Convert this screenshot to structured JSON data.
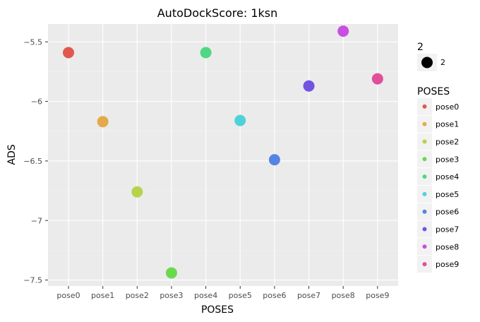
{
  "chart_data": {
    "type": "scatter",
    "title": "AutoDockScore: 1ksn",
    "xlabel": "POSES",
    "ylabel": "ADS",
    "categories": [
      "pose0",
      "pose1",
      "pose2",
      "pose3",
      "pose4",
      "pose5",
      "pose6",
      "pose7",
      "pose8",
      "pose9"
    ],
    "values": [
      -5.59,
      -6.17,
      -6.76,
      -7.44,
      -5.59,
      -6.16,
      -6.49,
      -5.87,
      -5.41,
      -5.81
    ],
    "colors": [
      "#e0584f",
      "#e3aa4c",
      "#b6d34b",
      "#6ad94e",
      "#4ed884",
      "#4ed2d8",
      "#5585e2",
      "#7353e2",
      "#c94fe0",
      "#e04f9a"
    ],
    "ylim": [
      -7.55,
      -5.35
    ],
    "yticks": [
      -5.5,
      -6,
      -6.5,
      -7,
      -7.5
    ],
    "ytick_labels": [
      "−5.5",
      "−6",
      "−6.5",
      "−7",
      "−7.5"
    ],
    "grid": true,
    "legend_position": "right",
    "size_legend": {
      "title": "2",
      "label": "2"
    },
    "color_legend": {
      "title": "POSES"
    }
  }
}
